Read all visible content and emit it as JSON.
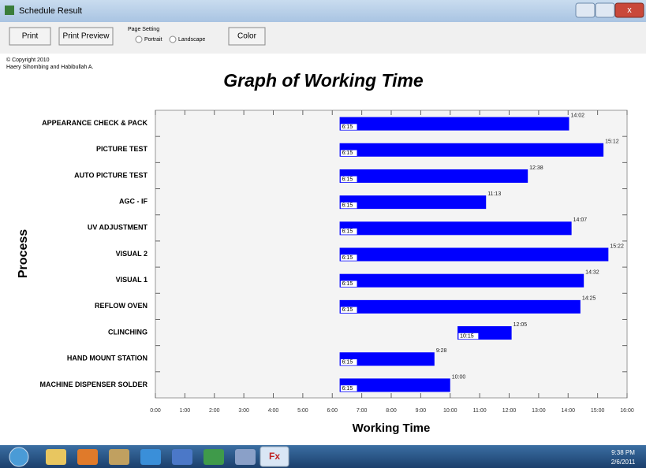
{
  "window": {
    "title": "Schedule Result"
  },
  "toolbar": {
    "print": "Print",
    "print_preview": "Print Preview",
    "page_setting": "Page Setting",
    "portrait": "Portrait",
    "landscape": "Landscape",
    "color": "Color"
  },
  "copyright": [
    "© Copyright 2010",
    "Haery Sihombing and Habibullah A."
  ],
  "chart_data": {
    "type": "floating_bar",
    "title": "Graph of Working Time",
    "xlabel": "Working Time",
    "ylabel": "Process",
    "categories": [
      "APPEARANCE CHECK & PACK",
      "PICTURE TEST",
      "AUTO PICTURE TEST",
      "AGC - IF",
      "UV ADJUSTMENT",
      "VISUAL 2",
      "VISUAL 1",
      "REFLOW OVEN",
      "CLINCHING",
      "HAND MOUNT STATION",
      "MACHINE DISPENSER SOLDER"
    ],
    "starts": [
      6.25,
      6.25,
      6.25,
      6.25,
      6.25,
      6.25,
      6.25,
      6.25,
      10.25,
      6.25,
      6.25
    ],
    "start_labels": [
      "6:15",
      "6:15",
      "6:15",
      "6:15",
      "6:15",
      "6:15",
      "6:15",
      "6:15",
      "10:15",
      "6:15",
      "6:15"
    ],
    "values": [
      14.0333,
      15.2,
      12.6333,
      11.2167,
      14.1167,
      15.3667,
      14.5333,
      14.4167,
      12.0833,
      9.4667,
      10
    ],
    "value_labels": [
      "14:02",
      "15:12",
      "12:38",
      "11:13",
      "14:07",
      "15:22",
      "14:32",
      "14:25",
      "12:05",
      "9:28",
      "10:00"
    ],
    "color": "#0000ff",
    "xlim": [
      0,
      16
    ],
    "xticks": [
      {
        "value": 0,
        "label": "0:00"
      },
      {
        "value": 1,
        "label": "1:00"
      },
      {
        "value": 2,
        "label": "2:00"
      },
      {
        "value": 3,
        "label": "3:00"
      },
      {
        "value": 4,
        "label": "4:00"
      },
      {
        "value": 5,
        "label": "5:00"
      },
      {
        "value": 6,
        "label": "6:00"
      },
      {
        "value": 7,
        "label": "7:00"
      },
      {
        "value": 8,
        "label": "8:00"
      },
      {
        "value": 9,
        "label": "9:00"
      },
      {
        "value": 10,
        "label": "10:00"
      },
      {
        "value": 11,
        "label": "11:00"
      },
      {
        "value": 12,
        "label": "12:00"
      },
      {
        "value": 13,
        "label": "13:00"
      },
      {
        "value": 14,
        "label": "14:00"
      },
      {
        "value": 15,
        "label": "15:00"
      },
      {
        "value": 16,
        "label": "16:00"
      }
    ]
  },
  "taskbar": {
    "time": "9:38 PM",
    "date": "2/6/2011"
  }
}
